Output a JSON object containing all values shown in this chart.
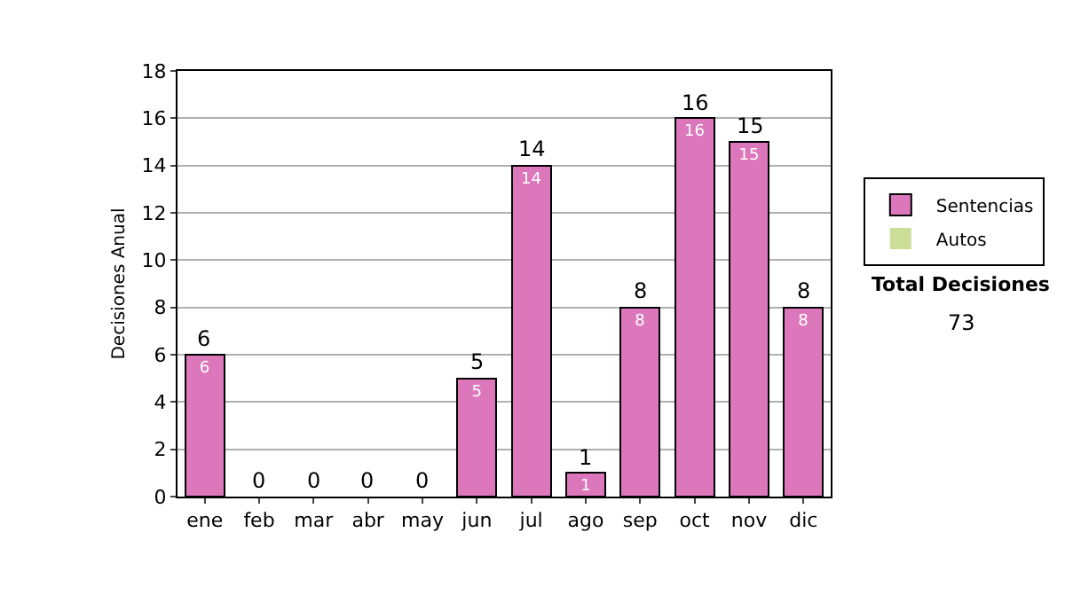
{
  "chart_data": {
    "type": "bar",
    "stacked": true,
    "categories": [
      "ene",
      "feb",
      "mar",
      "abr",
      "may",
      "jun",
      "jul",
      "ago",
      "sep",
      "oct",
      "nov",
      "dic"
    ],
    "series": [
      {
        "name": "Sentencias",
        "color": "#dd77bb",
        "values": [
          6,
          0,
          0,
          0,
          0,
          5,
          14,
          1,
          8,
          16,
          15,
          8
        ],
        "value_labels": [
          "6",
          null,
          null,
          null,
          null,
          "5",
          "14",
          "1",
          "8",
          "16",
          "15",
          "8"
        ]
      },
      {
        "name": "Autos",
        "color": "#ccdd99",
        "values": [
          0,
          0,
          0,
          0,
          0,
          0,
          0,
          0,
          0,
          0,
          0,
          0
        ]
      }
    ],
    "totals": [
      "6",
      "0",
      "0",
      "0",
      "0",
      "5",
      "14",
      "1",
      "8",
      "16",
      "15",
      "8"
    ],
    "ylabel": "Decisiones Anual",
    "ylim": [
      0,
      18
    ],
    "yticks": [
      0,
      2,
      4,
      6,
      8,
      10,
      12,
      14,
      16,
      18
    ],
    "grid": "y",
    "legend": "right",
    "annotations": [
      "Total Decisiones",
      "73"
    ]
  }
}
